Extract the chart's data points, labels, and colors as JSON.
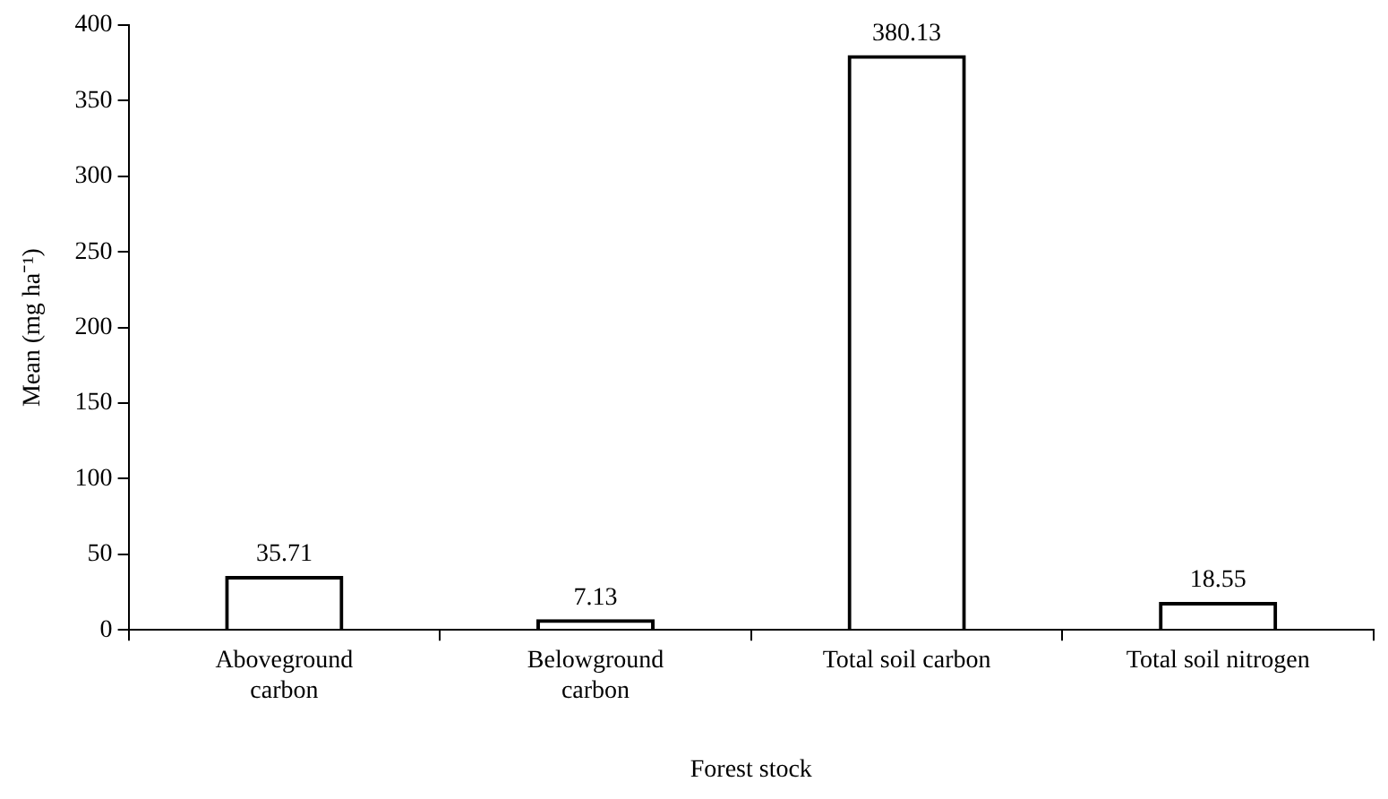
{
  "chart_data": {
    "type": "bar",
    "xlabel": "Forest stock",
    "ylabel": "Mean (mg ha⁻¹)",
    "categories": [
      "Aboveground carbon",
      "Belowground carbon",
      "Total soil carbon",
      "Total soil nitrogen"
    ],
    "values": [
      35.71,
      7.13,
      380.13,
      18.55
    ],
    "color": "#000000",
    "ylim": [
      0,
      400
    ],
    "yticks": [
      0,
      50,
      100,
      150,
      200,
      250,
      300,
      350,
      400
    ],
    "data_labels": true,
    "grid": false,
    "legend": false
  }
}
